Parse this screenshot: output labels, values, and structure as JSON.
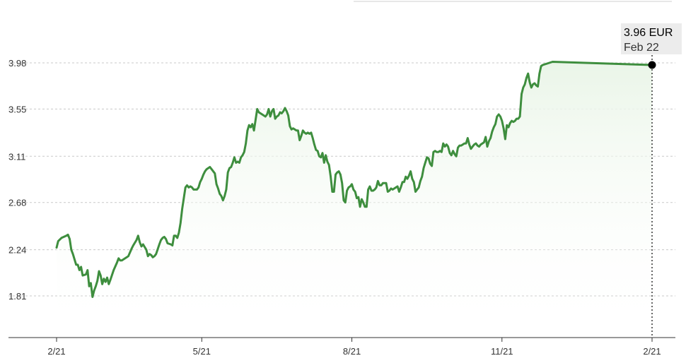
{
  "colors": {
    "line": "#3e8e3e",
    "area_top": "#eaf5e8",
    "marker": "#000000"
  },
  "tooltip": {
    "value": "3.96 EUR",
    "date": "Feb 22"
  },
  "chart_data": {
    "type": "line",
    "title": "",
    "xlabel": "",
    "ylabel": "",
    "grid": "horizontal",
    "ylim": [
      1.5,
      4.1
    ],
    "y_ticks": [
      {
        "label": "3.98",
        "value": 3.98
      },
      {
        "label": "3.55",
        "value": 3.55
      },
      {
        "label": "3.11",
        "value": 3.11
      },
      {
        "label": "2.68",
        "value": 2.68
      },
      {
        "label": "2.24",
        "value": 2.24
      },
      {
        "label": "1.81",
        "value": 1.81
      }
    ],
    "x_ticks": [
      {
        "label": "2/21",
        "t": 0
      },
      {
        "label": "5/21",
        "t": 89
      },
      {
        "label": "8/21",
        "t": 181
      },
      {
        "label": "11/21",
        "t": 273
      },
      {
        "label": "2/21",
        "t": 365
      }
    ],
    "series": [
      {
        "points": [
          [
            0,
            2.26
          ],
          [
            1,
            2.32
          ],
          [
            3,
            2.35
          ],
          [
            6,
            2.37
          ],
          [
            7,
            2.38
          ],
          [
            8,
            2.34
          ],
          [
            9,
            2.24
          ],
          [
            10,
            2.2
          ],
          [
            12,
            2.1
          ],
          [
            13,
            2.1
          ],
          [
            14,
            2.05
          ],
          [
            15,
            2.08
          ],
          [
            16,
            2.0
          ],
          [
            18,
            2.01
          ],
          [
            19,
            2.05
          ],
          [
            20,
            1.9
          ],
          [
            21,
            1.93
          ],
          [
            22,
            1.8
          ],
          [
            23,
            1.86
          ],
          [
            24,
            1.9
          ],
          [
            25,
            1.95
          ],
          [
            26,
            2.04
          ],
          [
            27,
            2.0
          ],
          [
            28,
            1.92
          ],
          [
            29,
            1.97
          ],
          [
            30,
            1.94
          ],
          [
            31,
            1.98
          ],
          [
            32,
            1.92
          ],
          [
            33,
            1.96
          ],
          [
            35,
            2.05
          ],
          [
            37,
            2.12
          ],
          [
            38,
            2.16
          ],
          [
            39,
            2.14
          ],
          [
            40,
            2.14
          ],
          [
            42,
            2.16
          ],
          [
            43,
            2.17
          ],
          [
            44,
            2.18
          ],
          [
            46,
            2.25
          ],
          [
            47,
            2.28
          ],
          [
            49,
            2.33
          ],
          [
            50,
            2.37
          ],
          [
            51,
            2.31
          ],
          [
            52,
            2.27
          ],
          [
            53,
            2.29
          ],
          [
            55,
            2.24
          ],
          [
            56,
            2.18
          ],
          [
            57,
            2.2
          ],
          [
            58,
            2.19
          ],
          [
            59,
            2.17
          ],
          [
            60,
            2.18
          ],
          [
            61,
            2.2
          ],
          [
            63,
            2.29
          ],
          [
            64,
            2.33
          ],
          [
            65,
            2.35
          ],
          [
            66,
            2.36
          ],
          [
            67,
            2.34
          ],
          [
            68,
            2.3
          ],
          [
            70,
            2.29
          ],
          [
            71,
            2.28
          ],
          [
            72,
            2.37
          ],
          [
            73,
            2.37
          ],
          [
            74,
            2.35
          ],
          [
            75,
            2.4
          ],
          [
            76,
            2.49
          ],
          [
            77,
            2.62
          ],
          [
            78,
            2.72
          ],
          [
            79,
            2.82
          ],
          [
            80,
            2.84
          ],
          [
            81,
            2.82
          ],
          [
            82,
            2.83
          ],
          [
            83,
            2.82
          ],
          [
            84,
            2.8
          ],
          [
            86,
            2.8
          ],
          [
            87,
            2.82
          ],
          [
            88,
            2.87
          ],
          [
            89,
            2.9
          ],
          [
            90,
            2.94
          ],
          [
            91,
            2.97
          ],
          [
            92,
            2.99
          ],
          [
            93,
            3.0
          ],
          [
            94,
            3.01
          ],
          [
            95,
            2.99
          ],
          [
            97,
            2.95
          ],
          [
            98,
            2.85
          ],
          [
            99,
            2.81
          ],
          [
            100,
            2.76
          ],
          [
            101,
            2.74
          ],
          [
            102,
            2.7
          ],
          [
            103,
            2.74
          ],
          [
            104,
            2.8
          ],
          [
            105,
            2.96
          ],
          [
            106,
            3.0
          ],
          [
            107,
            3.01
          ],
          [
            108,
            3.05
          ],
          [
            109,
            3.1
          ],
          [
            110,
            3.05
          ],
          [
            111,
            3.06
          ],
          [
            112,
            3.05
          ],
          [
            113,
            3.1
          ],
          [
            114,
            3.12
          ],
          [
            115,
            3.15
          ],
          [
            116,
            3.23
          ],
          [
            117,
            3.35
          ],
          [
            118,
            3.4
          ],
          [
            119,
            3.38
          ],
          [
            120,
            3.41
          ],
          [
            121,
            3.35
          ],
          [
            122,
            3.45
          ],
          [
            123,
            3.55
          ],
          [
            124,
            3.52
          ],
          [
            125,
            3.51
          ],
          [
            126,
            3.5
          ],
          [
            127,
            3.49
          ],
          [
            128,
            3.48
          ],
          [
            129,
            3.5
          ],
          [
            130,
            3.55
          ],
          [
            131,
            3.48
          ],
          [
            132,
            3.53
          ],
          [
            133,
            3.55
          ],
          [
            134,
            3.46
          ],
          [
            135,
            3.48
          ],
          [
            136,
            3.49
          ],
          [
            137,
            3.52
          ],
          [
            138,
            3.51
          ],
          [
            139,
            3.53
          ],
          [
            140,
            3.56
          ],
          [
            141,
            3.53
          ],
          [
            142,
            3.49
          ],
          [
            143,
            3.39
          ],
          [
            144,
            3.36
          ],
          [
            145,
            3.37
          ],
          [
            146,
            3.36
          ],
          [
            147,
            3.35
          ],
          [
            148,
            3.35
          ],
          [
            149,
            3.26
          ],
          [
            150,
            3.3
          ],
          [
            151,
            3.35
          ],
          [
            152,
            3.33
          ],
          [
            153,
            3.32
          ],
          [
            154,
            3.33
          ],
          [
            155,
            3.32
          ],
          [
            156,
            3.33
          ],
          [
            157,
            3.28
          ],
          [
            158,
            3.22
          ],
          [
            159,
            3.17
          ],
          [
            160,
            3.16
          ],
          [
            161,
            3.11
          ],
          [
            162,
            3.1
          ],
          [
            163,
            3.14
          ],
          [
            164,
            3.05
          ],
          [
            165,
            3.12
          ],
          [
            166,
            3.06
          ],
          [
            167,
            3.03
          ],
          [
            168,
            2.92
          ],
          [
            169,
            2.78
          ],
          [
            170,
            2.78
          ],
          [
            171,
            2.94
          ],
          [
            172,
            2.96
          ],
          [
            173,
            2.97
          ],
          [
            174,
            2.94
          ],
          [
            175,
            2.86
          ],
          [
            176,
            2.7
          ],
          [
            177,
            2.68
          ],
          [
            178,
            2.79
          ],
          [
            179,
            2.82
          ],
          [
            180,
            2.83
          ],
          [
            181,
            2.85
          ],
          [
            182,
            2.8
          ],
          [
            183,
            2.78
          ],
          [
            184,
            2.72
          ],
          [
            185,
            2.73
          ],
          [
            186,
            2.64
          ],
          [
            187,
            2.71
          ],
          [
            188,
            2.68
          ],
          [
            189,
            2.64
          ],
          [
            190,
            2.64
          ],
          [
            191,
            2.8
          ],
          [
            192,
            2.83
          ],
          [
            193,
            2.79
          ],
          [
            194,
            2.79
          ],
          [
            195,
            2.8
          ],
          [
            196,
            2.82
          ],
          [
            197,
            2.88
          ],
          [
            198,
            2.84
          ],
          [
            199,
            2.84
          ],
          [
            200,
            2.86
          ],
          [
            202,
            2.86
          ],
          [
            203,
            2.78
          ],
          [
            204,
            2.79
          ],
          [
            205,
            2.81
          ],
          [
            206,
            2.8
          ],
          [
            207,
            2.81
          ],
          [
            208,
            2.82
          ],
          [
            209,
            2.83
          ],
          [
            210,
            2.78
          ],
          [
            211,
            2.82
          ],
          [
            212,
            2.87
          ],
          [
            213,
            2.87
          ],
          [
            214,
            2.92
          ],
          [
            215,
            2.9
          ],
          [
            216,
            2.93
          ],
          [
            217,
            2.97
          ],
          [
            218,
            2.9
          ],
          [
            219,
            2.87
          ],
          [
            220,
            2.78
          ],
          [
            221,
            2.8
          ],
          [
            222,
            2.82
          ],
          [
            223,
            2.88
          ],
          [
            224,
            2.92
          ],
          [
            225,
            3.0
          ],
          [
            226,
            3.05
          ],
          [
            227,
            3.1
          ],
          [
            228,
            3.09
          ],
          [
            229,
            3.04
          ],
          [
            230,
            3.02
          ],
          [
            231,
            3.15
          ],
          [
            232,
            3.16
          ],
          [
            233,
            3.15
          ],
          [
            234,
            3.15
          ],
          [
            235,
            3.16
          ],
          [
            236,
            3.15
          ],
          [
            237,
            3.23
          ],
          [
            238,
            3.2
          ],
          [
            239,
            3.22
          ],
          [
            240,
            3.2
          ],
          [
            241,
            3.14
          ],
          [
            242,
            3.12
          ],
          [
            243,
            3.16
          ],
          [
            244,
            3.13
          ],
          [
            245,
            3.11
          ],
          [
            246,
            3.19
          ],
          [
            247,
            3.21
          ],
          [
            248,
            3.21
          ],
          [
            249,
            3.22
          ],
          [
            250,
            3.23
          ],
          [
            251,
            3.23
          ],
          [
            252,
            3.28
          ],
          [
            253,
            3.22
          ],
          [
            254,
            3.18
          ],
          [
            255,
            3.2
          ],
          [
            256,
            3.22
          ],
          [
            257,
            3.23
          ],
          [
            258,
            3.21
          ],
          [
            259,
            3.2
          ],
          [
            260,
            3.22
          ],
          [
            261,
            3.23
          ],
          [
            262,
            3.24
          ],
          [
            263,
            3.29
          ],
          [
            264,
            3.2
          ],
          [
            265,
            3.25
          ],
          [
            266,
            3.28
          ],
          [
            267,
            3.34
          ],
          [
            268,
            3.38
          ],
          [
            269,
            3.41
          ],
          [
            270,
            3.48
          ],
          [
            271,
            3.5
          ],
          [
            272,
            3.48
          ],
          [
            273,
            3.44
          ],
          [
            274,
            3.37
          ],
          [
            275,
            3.27
          ],
          [
            276,
            3.4
          ],
          [
            277,
            3.38
          ],
          [
            278,
            3.42
          ],
          [
            279,
            3.44
          ],
          [
            280,
            3.43
          ],
          [
            281,
            3.44
          ],
          [
            282,
            3.46
          ],
          [
            283,
            3.46
          ],
          [
            284,
            3.48
          ],
          [
            285,
            3.69
          ],
          [
            286,
            3.75
          ],
          [
            287,
            3.78
          ],
          [
            288,
            3.84
          ],
          [
            289,
            3.88
          ],
          [
            290,
            3.8
          ],
          [
            291,
            3.75
          ],
          [
            292,
            3.78
          ],
          [
            293,
            3.79
          ],
          [
            294,
            3.77
          ],
          [
            295,
            3.76
          ],
          [
            296,
            3.88
          ],
          [
            297,
            3.95
          ],
          [
            298,
            3.96
          ],
          [
            300,
            3.97
          ],
          [
            302,
            3.98
          ],
          [
            304,
            3.99
          ],
          [
            365,
            3.96
          ]
        ]
      }
    ]
  }
}
